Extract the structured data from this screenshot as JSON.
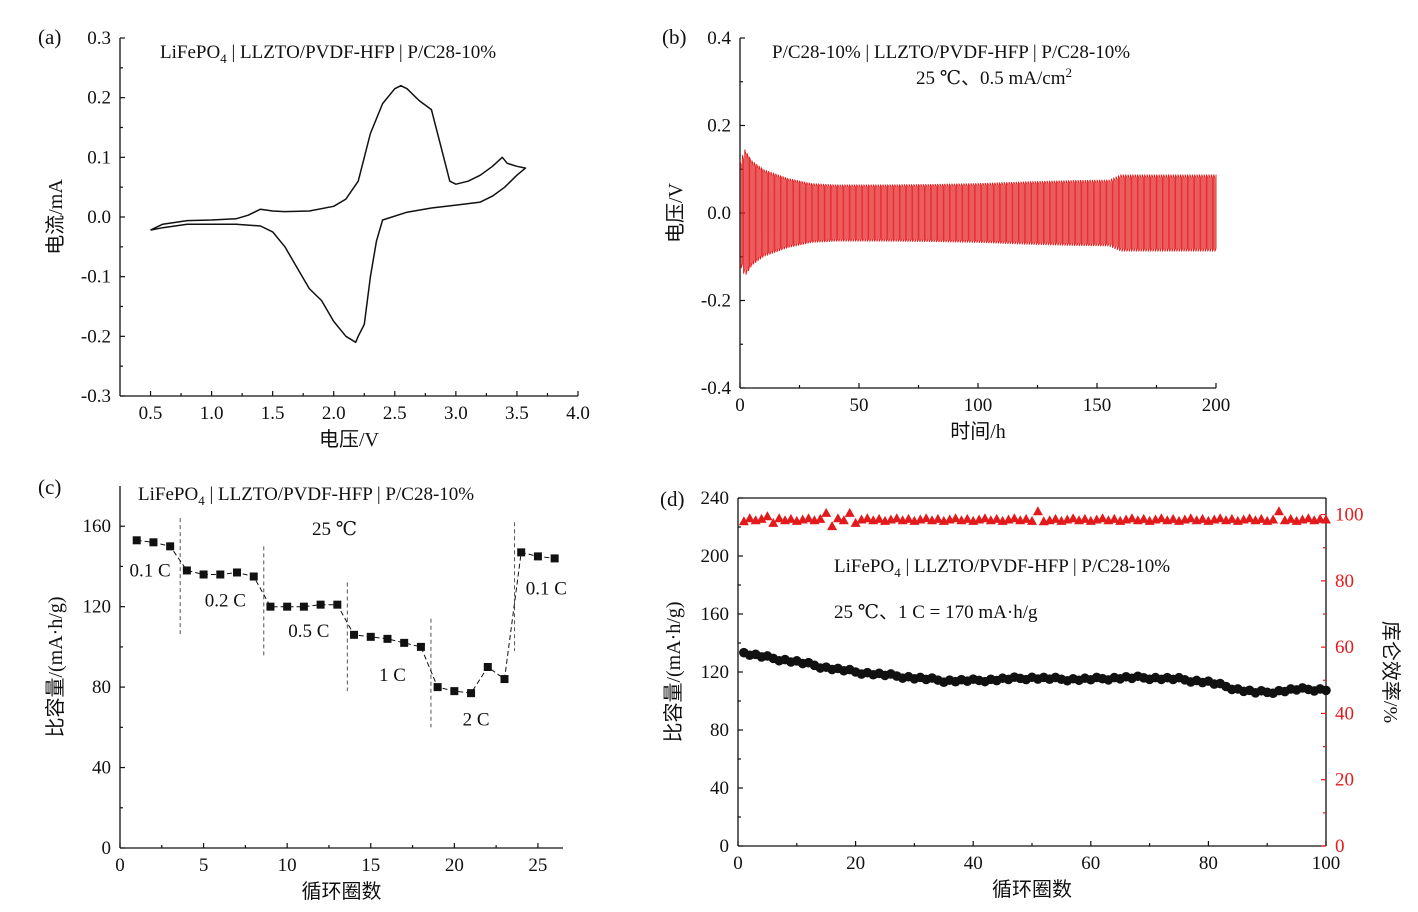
{
  "figure": {
    "panels": [
      "a",
      "b",
      "c",
      "d"
    ]
  },
  "chart_data": [
    {
      "id": "a",
      "type": "line",
      "panel_label": "(a)",
      "annotation": {
        "main": "LiFePO",
        "sub": "4",
        "rest": "  |  LLZTO/PVDF-HFP  |  P/C28-10%"
      },
      "xlabel": "电压/V",
      "ylabel": "电流/mA",
      "xlim": [
        0.25,
        4.0
      ],
      "ylim": [
        -0.3,
        0.3
      ],
      "xticks": [
        0.5,
        1.0,
        1.5,
        2.0,
        2.5,
        3.0,
        3.5,
        4.0
      ],
      "xtick_labels": [
        "0.5",
        "1.0",
        "1.5",
        "2.0",
        "2.5",
        "3.0",
        "3.5",
        "4.0"
      ],
      "yticks": [
        -0.3,
        -0.2,
        -0.1,
        0.0,
        0.1,
        0.2,
        0.3
      ],
      "ytick_labels": [
        "-0.3",
        "-0.2",
        "-0.1",
        "0.0",
        "0.1",
        "0.2",
        "0.3"
      ],
      "color": "#111111",
      "x": [
        0.5,
        0.6,
        0.8,
        1.0,
        1.2,
        1.3,
        1.4,
        1.5,
        1.6,
        1.8,
        2.0,
        2.1,
        2.2,
        2.3,
        2.4,
        2.5,
        2.55,
        2.6,
        2.7,
        2.8,
        2.9,
        2.95,
        3.0,
        3.1,
        3.2,
        3.3,
        3.38,
        3.42,
        3.5,
        3.57,
        3.5,
        3.4,
        3.3,
        3.2,
        3.0,
        2.8,
        2.6,
        2.4,
        2.35,
        2.3,
        2.25,
        2.2,
        2.18,
        2.1,
        2.0,
        1.9,
        1.8,
        1.7,
        1.6,
        1.5,
        1.4,
        1.2,
        1.0,
        0.8,
        0.6,
        0.5
      ],
      "y": [
        -0.022,
        -0.012,
        -0.006,
        -0.005,
        -0.003,
        0.003,
        0.013,
        0.01,
        0.009,
        0.01,
        0.018,
        0.03,
        0.06,
        0.14,
        0.19,
        0.215,
        0.22,
        0.215,
        0.195,
        0.18,
        0.1,
        0.06,
        0.055,
        0.06,
        0.07,
        0.085,
        0.1,
        0.09,
        0.085,
        0.082,
        0.07,
        0.05,
        0.035,
        0.025,
        0.02,
        0.015,
        0.008,
        -0.005,
        -0.04,
        -0.1,
        -0.18,
        -0.2,
        -0.21,
        -0.2,
        -0.175,
        -0.14,
        -0.12,
        -0.085,
        -0.05,
        -0.025,
        -0.015,
        -0.012,
        -0.012,
        -0.012,
        -0.018,
        -0.022
      ]
    },
    {
      "id": "b",
      "type": "line",
      "panel_label": "(b)",
      "annotation_line1": "P/C28-10%  |  LLZTO/PVDF-HFP  |  P/C28-10%",
      "annotation_line2": {
        "main": "25 ℃、0.5 mA/cm",
        "sup": "2"
      },
      "xlabel": "时间/h",
      "ylabel": "电压/V",
      "xlim": [
        0,
        200
      ],
      "ylim": [
        -0.4,
        0.4
      ],
      "xticks": [
        0,
        50,
        100,
        150,
        200
      ],
      "xtick_labels": [
        "0",
        "50",
        "100",
        "150",
        "200"
      ],
      "yticks": [
        -0.4,
        -0.2,
        0.0,
        0.2,
        0.4
      ],
      "ytick_labels": [
        "-0.4",
        "-0.2",
        "0.0",
        "0.2",
        "0.4"
      ],
      "color": "#e31a1c",
      "cycle_period_h": 1,
      "polarization_profile_x": [
        0,
        2,
        5,
        10,
        20,
        30,
        40,
        60,
        80,
        100,
        120,
        140,
        155,
        160,
        180,
        200
      ],
      "polarization_profile_y": [
        0.12,
        0.145,
        0.12,
        0.1,
        0.08,
        0.068,
        0.065,
        0.065,
        0.066,
        0.068,
        0.072,
        0.075,
        0.076,
        0.088,
        0.088,
        0.088
      ]
    },
    {
      "id": "c",
      "type": "line",
      "panel_label": "(c)",
      "annotation": {
        "main": "LiFePO",
        "sub": "4",
        "rest": "  | LLZTO/PVDF-HFP | P/C28-10%"
      },
      "annotation_line2": "25 ℃",
      "xlabel": "循环圈数",
      "ylabel": "比容量/(mA·h/g)",
      "xlim": [
        0,
        26.5
      ],
      "ylim": [
        0,
        180
      ],
      "xticks": [
        0,
        5,
        10,
        15,
        20,
        25
      ],
      "xtick_labels": [
        "0",
        "5",
        "10",
        "15",
        "20",
        "25"
      ],
      "yticks": [
        0,
        40,
        80,
        120,
        160
      ],
      "ytick_labels": [
        "0",
        "40",
        "80",
        "120",
        "160"
      ],
      "color": "#111111",
      "x": [
        1,
        2,
        3,
        4,
        5,
        6,
        7,
        8,
        9,
        10,
        11,
        12,
        13,
        14,
        15,
        16,
        17,
        18,
        19,
        20,
        21,
        22,
        23,
        24,
        25,
        26
      ],
      "y": [
        153,
        152,
        150,
        138,
        136,
        136,
        137,
        135,
        120,
        120,
        120,
        121,
        121,
        106,
        105,
        104,
        102,
        100,
        80,
        78,
        77,
        90,
        84,
        147,
        145,
        144
      ],
      "rate_dividers_x": [
        3.6,
        8.6,
        13.6,
        18.6,
        23.6
      ],
      "rate_labels": [
        {
          "text": "0.1 C",
          "x": 1.8,
          "y": 135
        },
        {
          "text": "0.2 C",
          "x": 6.3,
          "y": 120
        },
        {
          "text": "0.5 C",
          "x": 11.3,
          "y": 105
        },
        {
          "text": "1 C",
          "x": 16.3,
          "y": 83
        },
        {
          "text": "2 C",
          "x": 21.3,
          "y": 61
        },
        {
          "text": "0.1 C",
          "x": 25.5,
          "y": 126
        }
      ]
    },
    {
      "id": "d",
      "type": "scatter",
      "panel_label": "(d)",
      "annotation": {
        "main": "LiFePO",
        "sub": "4",
        "rest": " | LLZTO/PVDF-HFP | P/C28-10%"
      },
      "annotation_line2": "25 ℃、1 C = 170 mA·h/g",
      "xlabel": "循环圈数",
      "ylabel": "比容量/(mA·h/g)",
      "ylabel2": "库仑效率/%",
      "xlim": [
        0,
        100
      ],
      "ylim": [
        0,
        240
      ],
      "ylim2": [
        0,
        105
      ],
      "xticks": [
        0,
        20,
        40,
        60,
        80,
        100
      ],
      "xtick_labels": [
        "0",
        "20",
        "40",
        "60",
        "80",
        "100"
      ],
      "yticks": [
        0,
        40,
        80,
        120,
        160,
        200,
        240
      ],
      "ytick_labels": [
        "0",
        "40",
        "80",
        "120",
        "160",
        "200",
        "240"
      ],
      "yticks2": [
        0,
        20,
        40,
        60,
        80,
        100
      ],
      "ytick_labels2": [
        "0",
        "20",
        "40",
        "60",
        "80",
        "100"
      ],
      "capacity_color": "#111111",
      "ce_color": "#e31a1c",
      "capacity_x": [
        1,
        5,
        10,
        15,
        20,
        25,
        30,
        35,
        40,
        45,
        50,
        55,
        60,
        65,
        70,
        75,
        80,
        85,
        88,
        90,
        95,
        100
      ],
      "capacity_y": [
        133,
        130,
        127,
        123,
        120,
        118,
        116,
        114,
        114,
        115,
        116,
        115,
        115,
        116,
        116,
        115,
        113,
        108,
        106,
        106,
        108,
        108
      ],
      "ce_x": [
        1,
        5,
        6,
        15,
        16,
        19,
        20,
        51,
        52,
        92,
        100
      ],
      "ce_y": [
        98,
        99.5,
        97.5,
        100.5,
        96.5,
        100.5,
        97.5,
        101,
        98,
        101,
        98.5
      ],
      "ce_baseline": 98.5
    }
  ]
}
